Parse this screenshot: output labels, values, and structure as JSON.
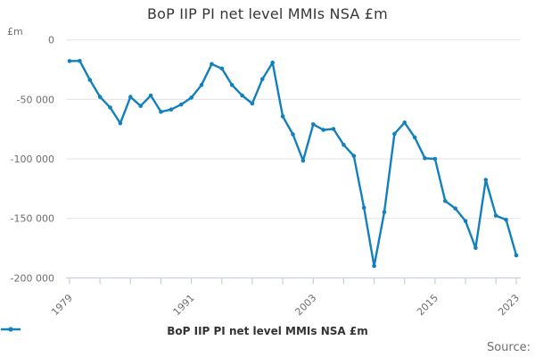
{
  "title": "BoP IIP PI net level MMIs NSA £m",
  "y_axis": {
    "unit": "£m",
    "ticks": [
      {
        "value": 0,
        "label": "0"
      },
      {
        "value": -50000,
        "label": "-50 000"
      },
      {
        "value": -100000,
        "label": "-100 000"
      },
      {
        "value": -150000,
        "label": "-150 000"
      },
      {
        "value": -200000,
        "label": "-200 000"
      }
    ]
  },
  "x_axis": {
    "tick_years": [
      1979,
      1982,
      1985,
      1988,
      1991,
      1994,
      1997,
      2000,
      2003,
      2006,
      2009,
      2012,
      2015,
      2018,
      2021,
      2023
    ],
    "labeled_years": [
      1979,
      1991,
      2003,
      2015,
      2023
    ]
  },
  "legend": {
    "label": "BoP IIP PI net level MMIs NSA £m",
    "icon": "line-with-dot-marker"
  },
  "source": {
    "label": "Source:"
  },
  "colors": {
    "line": "#1380BE",
    "grid": "#e3e3e3",
    "axis": "#c5cde0",
    "tick_text": "#6e6e6e",
    "title_text": "#373737",
    "legend_text": "#333333"
  },
  "chart_data": {
    "type": "line",
    "title": "BoP IIP PI net level MMIs NSA £m",
    "xlabel": "",
    "ylabel": "£m",
    "xlim": [
      1979,
      2023
    ],
    "ylim": [
      -200000,
      0
    ],
    "grid": true,
    "legend_position": "bottom",
    "marker": "dot",
    "x": [
      1979,
      1980,
      1981,
      1982,
      1983,
      1984,
      1985,
      1986,
      1987,
      1988,
      1989,
      1990,
      1991,
      1992,
      1993,
      1994,
      1995,
      1996,
      1997,
      1998,
      1999,
      2000,
      2001,
      2002,
      2003,
      2004,
      2005,
      2006,
      2007,
      2008,
      2009,
      2010,
      2011,
      2012,
      2013,
      2014,
      2015,
      2016,
      2017,
      2018,
      2019,
      2020,
      2021,
      2022,
      2023
    ],
    "series": [
      {
        "name": "BoP IIP PI net level MMIs NSA £m",
        "values": [
          -17800,
          -17600,
          -33600,
          -47900,
          -56800,
          -70100,
          -47900,
          -55500,
          -46700,
          -60500,
          -58500,
          -54300,
          -48500,
          -37900,
          -20300,
          -24100,
          -37900,
          -46700,
          -53500,
          -32900,
          -19100,
          -64300,
          -79400,
          -101500,
          -71000,
          -75600,
          -74900,
          -88200,
          -97500,
          -141000,
          -190000,
          -144700,
          -79000,
          -69500,
          -81900,
          -99500,
          -100000,
          -135400,
          -141700,
          -152300,
          -174900,
          -117600,
          -147700,
          -151200,
          -181100
        ]
      }
    ]
  }
}
